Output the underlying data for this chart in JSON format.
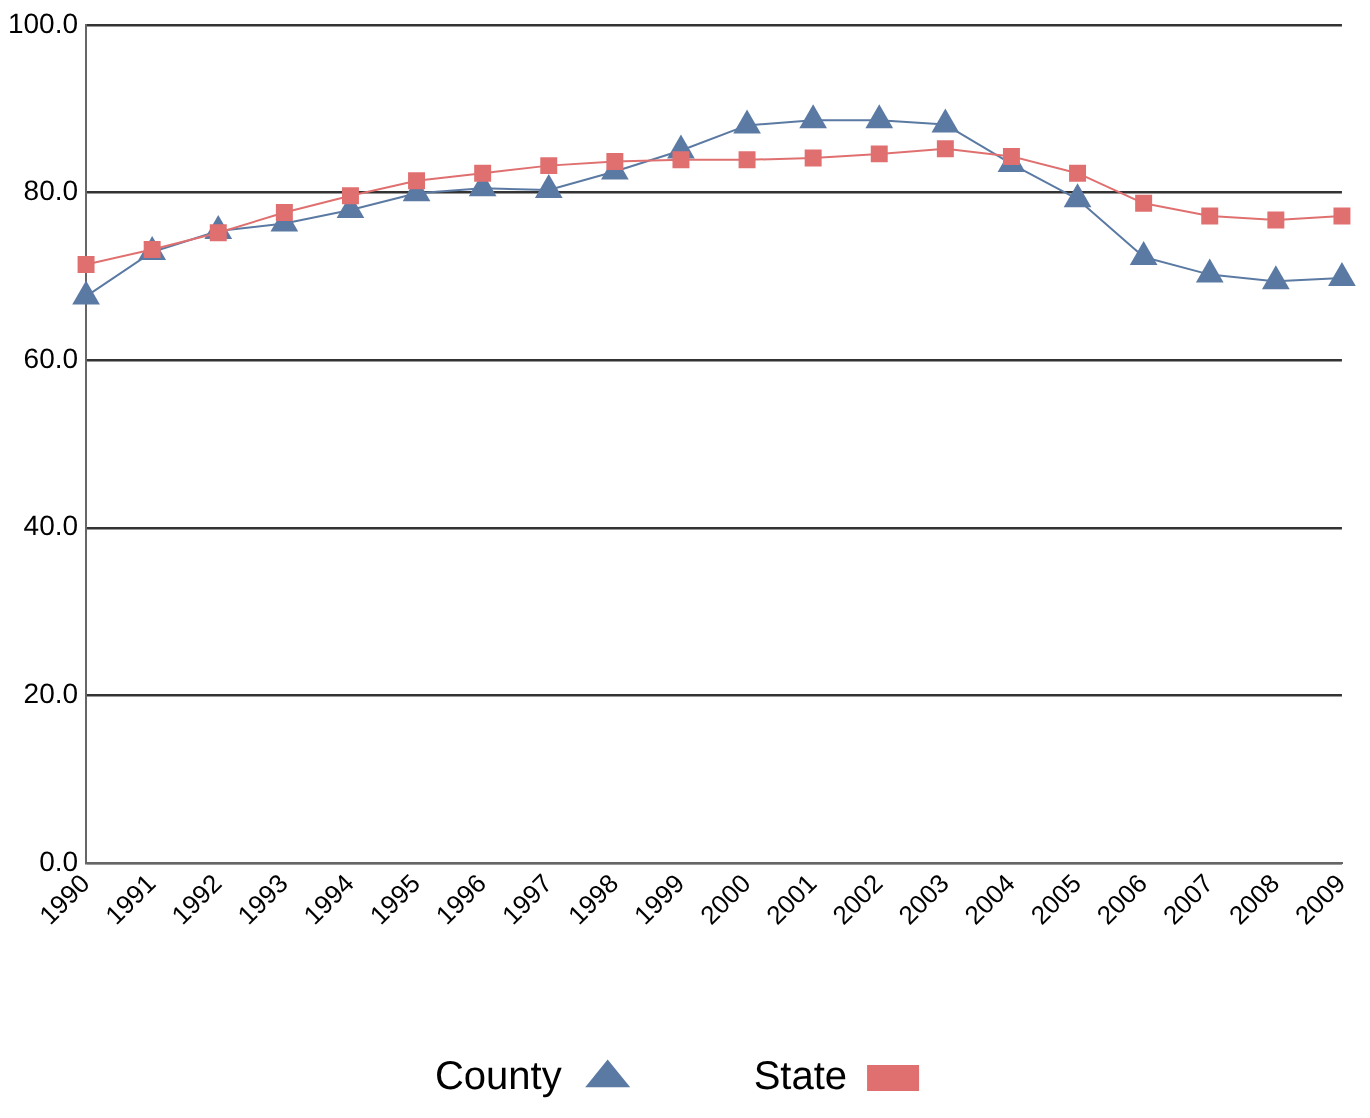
{
  "chart_data": {
    "type": "line",
    "categories": [
      "1990",
      "1991",
      "1992",
      "1993",
      "1994",
      "1995",
      "1996",
      "1997",
      "1998",
      "1999",
      "2000",
      "2001",
      "2002",
      "2003",
      "2004",
      "2005",
      "2006",
      "2007",
      "2008",
      "2009"
    ],
    "series": [
      {
        "name": "County",
        "color": "#5b7aa3",
        "marker": "triangle",
        "values": [
          67.6,
          72.9,
          75.4,
          76.3,
          77.9,
          79.9,
          80.5,
          80.3,
          82.5,
          85.0,
          88.0,
          88.6,
          88.6,
          88.1,
          83.4,
          79.2,
          72.3,
          70.2,
          69.4,
          69.8
        ]
      },
      {
        "name": "State",
        "color": "#e07070",
        "marker": "square",
        "values": [
          71.4,
          73.2,
          75.2,
          77.6,
          79.6,
          81.4,
          82.3,
          83.2,
          83.7,
          83.9,
          83.9,
          84.1,
          84.6,
          85.2,
          84.3,
          82.3,
          78.7,
          77.2,
          76.7,
          77.2
        ]
      }
    ],
    "ylim": [
      0,
      100
    ],
    "yticks": [
      {
        "value": 0,
        "label": "0.0"
      },
      {
        "value": 20,
        "label": "20.0"
      },
      {
        "value": 40,
        "label": "40.0"
      },
      {
        "value": 60,
        "label": "60.0"
      },
      {
        "value": 80,
        "label": "80.0"
      },
      {
        "value": 100,
        "label": "100.0"
      }
    ],
    "grid": "y",
    "legend": "bottom"
  }
}
